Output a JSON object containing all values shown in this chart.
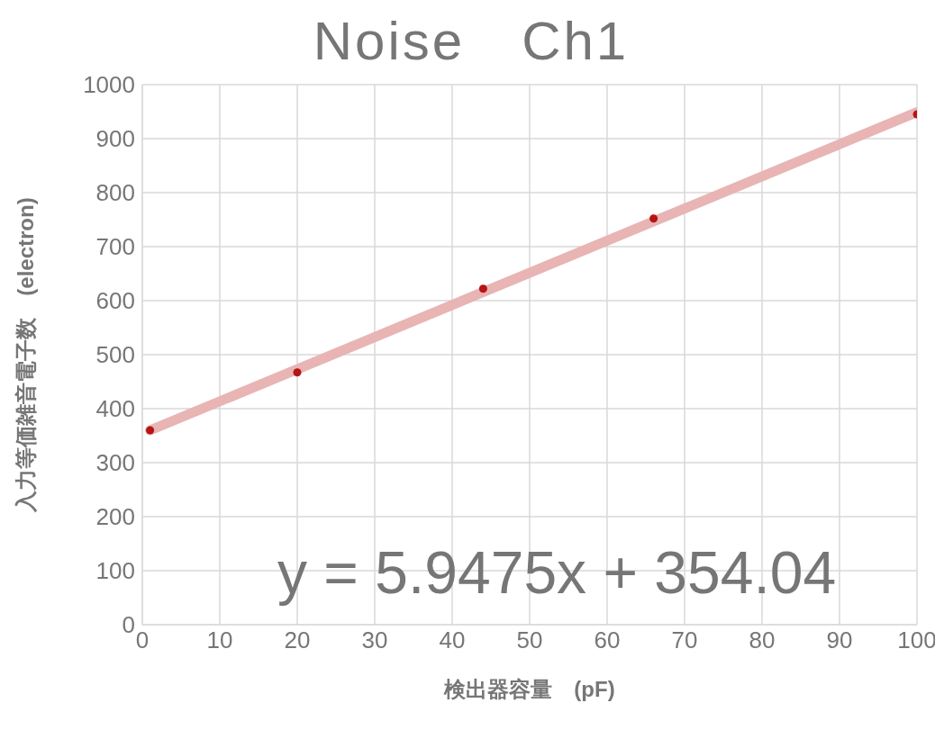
{
  "chart_data": {
    "type": "scatter",
    "title": "Noise　Ch1",
    "xlabel": "検出器容量　(pF)",
    "ylabel": "入力等価雑音電子数　(electron)",
    "series": [
      {
        "type": "scatter",
        "x": [
          1,
          20,
          44,
          66,
          100
        ],
        "values": [
          360,
          467,
          622,
          752,
          945
        ],
        "color": "#b81414",
        "marker": "circle"
      },
      {
        "type": "line",
        "x": [
          1,
          100
        ],
        "values": [
          360,
          949
        ],
        "color": "#e8b4b4",
        "marker": "none",
        "line_style": "solid"
      }
    ],
    "xlim": [
      0,
      100
    ],
    "xticks": [
      0,
      10,
      20,
      30,
      40,
      50,
      60,
      70,
      80,
      90,
      100
    ],
    "ylim": [
      0,
      1000
    ],
    "yticks": [
      0,
      100,
      200,
      300,
      400,
      500,
      600,
      700,
      800,
      900,
      1000
    ],
    "grid": true,
    "annotations": [
      "y = 5.9475x + 354.04"
    ]
  }
}
